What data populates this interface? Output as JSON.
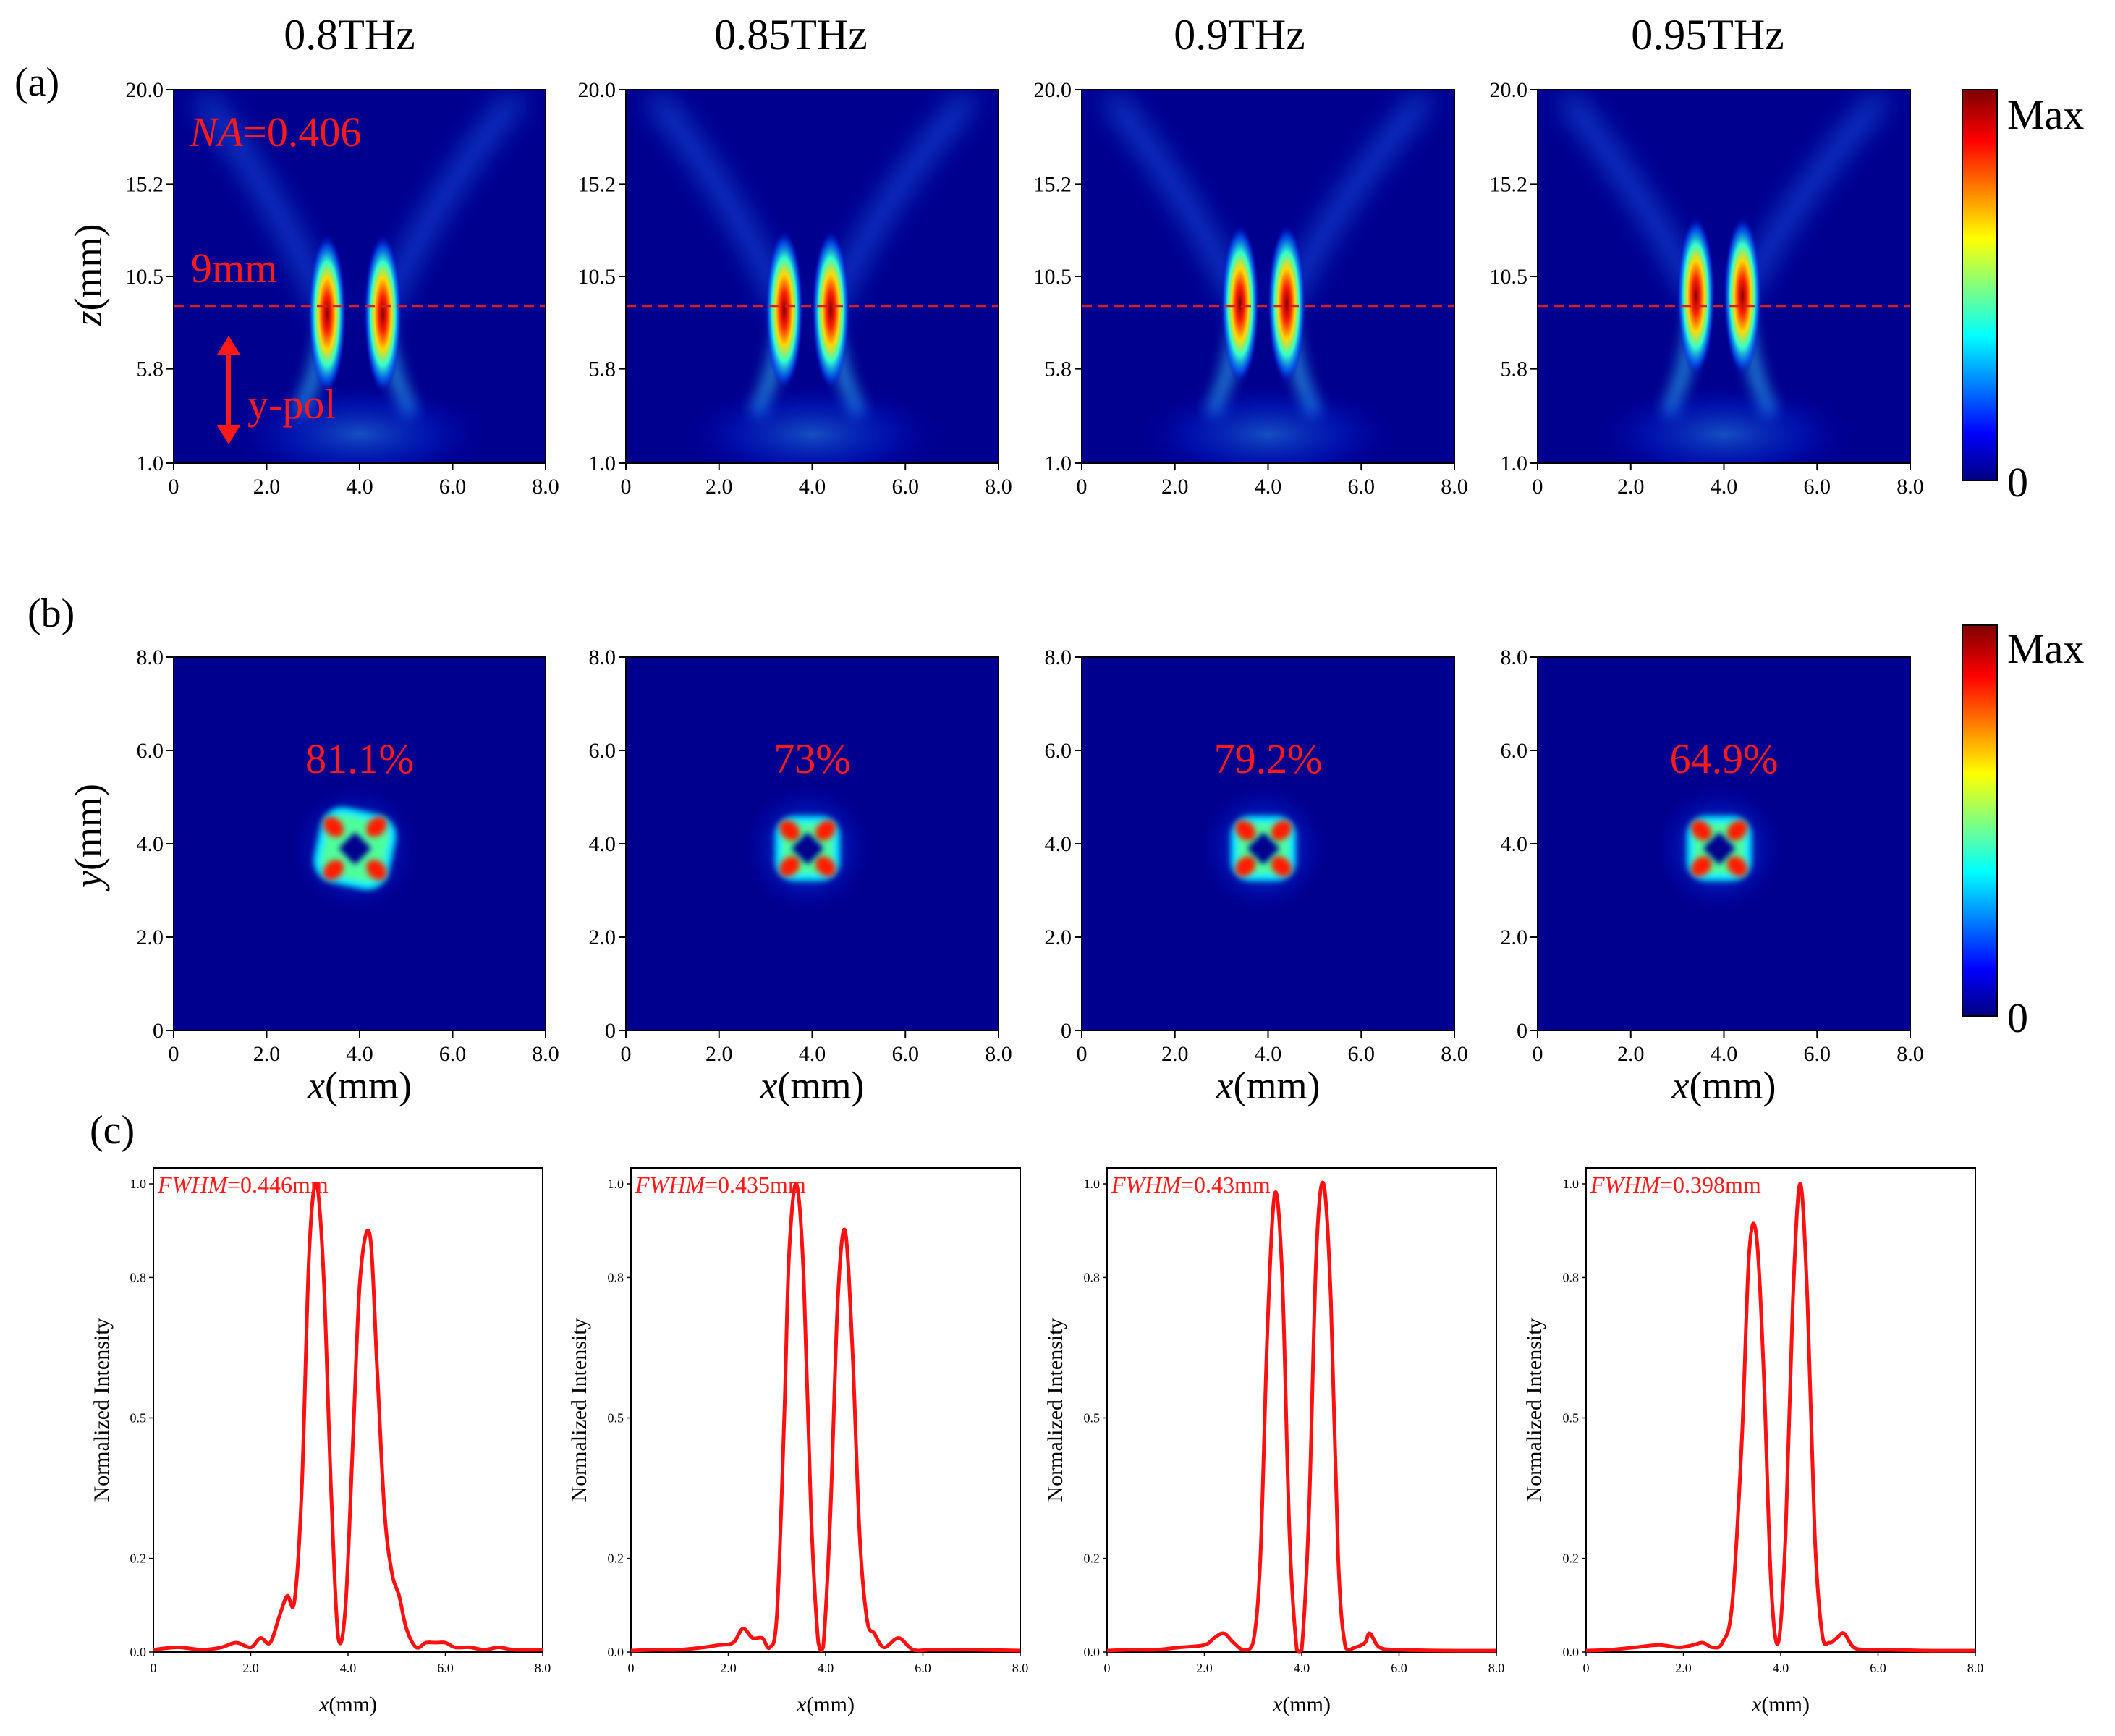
{
  "panel_labels": {
    "a": "(a)",
    "b": "(b)",
    "c": "(c)"
  },
  "frequencies": [
    "0.8THz",
    "0.85THz",
    "0.9THz",
    "0.95THz"
  ],
  "colorbar": {
    "max_label": "Max",
    "min_label": "0",
    "colormap": "jet",
    "colors": [
      "#00007f",
      "#0000ff",
      "#00ffff",
      "#ffff00",
      "#ff0000",
      "#7f0000"
    ]
  },
  "row_a": {
    "ylabel_var": "z",
    "ylabel_unit": "(mm)",
    "annotations": {
      "na_var": "NA",
      "na_value": "=0.406",
      "focal_label": "9mm",
      "polarization": "y-pol"
    },
    "yticks": [
      "20.0",
      "15.2",
      "10.5",
      "5.8",
      "1.0"
    ],
    "xticks": [
      "0",
      "2.0",
      "4.0",
      "6.0",
      "8.0"
    ]
  },
  "row_b": {
    "ylabel_var": "y",
    "ylabel_unit": "(mm)",
    "xlabel_var": "x",
    "xlabel_unit": "(mm)",
    "efficiencies": [
      "81.1%",
      "73%",
      "79.2%",
      "64.9%"
    ],
    "yticks": [
      "8.0",
      "6.0",
      "4.0",
      "2.0",
      "0"
    ],
    "xticks": [
      "0",
      "2.0",
      "4.0",
      "6.0",
      "8.0"
    ]
  },
  "row_c": {
    "ylabel": "Normalized Intensity",
    "xlabel_var": "x",
    "xlabel_unit": "(mm)",
    "fwhm_var": "FWHM",
    "fwhm_values": [
      "=0.446mm",
      "=0.435mm",
      "=0.43mm",
      "=0.398mm"
    ],
    "yticks": [
      "1.0",
      "0.8",
      "0.5",
      "0.2",
      "0.0"
    ],
    "xticks": [
      "0",
      "2.0",
      "4.0",
      "6.0",
      "8.0"
    ]
  },
  "chart_data": [
    {
      "type": "heatmap",
      "panel": "a",
      "xlabel": "",
      "ylabel": "z(mm)",
      "xlim": [
        0,
        8
      ],
      "ylim": [
        1,
        20
      ],
      "focal_plane_z": 9,
      "series": [
        {
          "name": "0.8THz",
          "lobes_x": [
            3.3,
            4.5
          ],
          "peak_z": 8.6
        },
        {
          "name": "0.85THz",
          "lobes_x": [
            3.4,
            4.4
          ],
          "peak_z": 8.8
        },
        {
          "name": "0.9THz",
          "lobes_x": [
            3.4,
            4.4
          ],
          "peak_z": 9.1
        },
        {
          "name": "0.95THz",
          "lobes_x": [
            3.4,
            4.4
          ],
          "peak_z": 9.5
        }
      ]
    },
    {
      "type": "heatmap",
      "panel": "b",
      "xlabel": "x(mm)",
      "ylabel": "y(mm)",
      "xlim": [
        0,
        8
      ],
      "ylim": [
        0,
        8
      ],
      "series": [
        {
          "name": "0.8THz",
          "efficiency": "81.1%",
          "center": [
            3.9,
            3.9
          ]
        },
        {
          "name": "0.85THz",
          "efficiency": "73%",
          "center": [
            3.9,
            3.9
          ]
        },
        {
          "name": "0.9THz",
          "efficiency": "79.2%",
          "center": [
            3.9,
            3.9
          ]
        },
        {
          "name": "0.95THz",
          "efficiency": "64.9%",
          "center": [
            3.9,
            3.9
          ]
        }
      ]
    },
    {
      "type": "line",
      "panel": "c",
      "xlabel": "x(mm)",
      "ylabel": "Normalized Intensity",
      "xlim": [
        0,
        8
      ],
      "ylim": [
        0,
        1.0
      ],
      "series": [
        {
          "name": "0.8THz",
          "fwhm": "0.446mm",
          "x": [
            0,
            0.5,
            1.0,
            1.4,
            1.7,
            2.0,
            2.2,
            2.4,
            2.6,
            2.75,
            2.9,
            3.05,
            3.2,
            3.35,
            3.5,
            3.65,
            3.8,
            3.95,
            4.1,
            4.25,
            4.45,
            4.6,
            4.75,
            4.9,
            5.05,
            5.2,
            5.4,
            5.6,
            5.8,
            6.0,
            6.2,
            6.5,
            6.8,
            7.1,
            7.4,
            8.0
          ],
          "y": [
            0.005,
            0.01,
            0.005,
            0.01,
            0.02,
            0.01,
            0.03,
            0.02,
            0.08,
            0.12,
            0.11,
            0.35,
            0.85,
            1.0,
            0.8,
            0.35,
            0.03,
            0.1,
            0.45,
            0.8,
            0.89,
            0.6,
            0.3,
            0.17,
            0.12,
            0.05,
            0.01,
            0.02,
            0.02,
            0.02,
            0.01,
            0.01,
            0.005,
            0.01,
            0.005,
            0.005
          ]
        },
        {
          "name": "0.85THz",
          "fwhm": "0.435mm",
          "x": [
            0,
            0.5,
            1.0,
            1.5,
            1.8,
            2.1,
            2.3,
            2.5,
            2.7,
            2.85,
            3.0,
            3.15,
            3.25,
            3.4,
            3.55,
            3.7,
            3.85,
            3.95,
            4.1,
            4.25,
            4.4,
            4.55,
            4.7,
            4.85,
            5.0,
            5.2,
            5.5,
            5.8,
            6.2,
            7.0,
            8.0
          ],
          "y": [
            0.003,
            0.005,
            0.005,
            0.01,
            0.015,
            0.02,
            0.05,
            0.03,
            0.03,
            0.01,
            0.08,
            0.5,
            0.85,
            1.0,
            0.8,
            0.3,
            0.02,
            0.01,
            0.3,
            0.75,
            0.9,
            0.65,
            0.25,
            0.07,
            0.04,
            0.01,
            0.03,
            0.005,
            0.005,
            0.005,
            0.003
          ]
        },
        {
          "name": "0.9THz",
          "fwhm": "0.43mm",
          "x": [
            0,
            0.5,
            1.0,
            1.5,
            2.0,
            2.2,
            2.4,
            2.6,
            2.8,
            3.0,
            3.15,
            3.3,
            3.45,
            3.6,
            3.75,
            3.9,
            4.0,
            4.15,
            4.3,
            4.45,
            4.6,
            4.75,
            4.9,
            5.1,
            5.3,
            5.4,
            5.6,
            6.0,
            7.0,
            8.0
          ],
          "y": [
            0.003,
            0.005,
            0.005,
            0.01,
            0.015,
            0.03,
            0.04,
            0.02,
            0.005,
            0.02,
            0.2,
            0.7,
            0.98,
            0.8,
            0.25,
            0.005,
            0.005,
            0.3,
            0.85,
            1.0,
            0.75,
            0.2,
            0.01,
            0.01,
            0.02,
            0.04,
            0.01,
            0.005,
            0.003,
            0.003
          ]
        },
        {
          "name": "0.95THz",
          "fwhm": "0.398mm",
          "x": [
            0,
            0.5,
            1.0,
            1.5,
            1.9,
            2.2,
            2.4,
            2.6,
            2.8,
            3.0,
            3.2,
            3.35,
            3.5,
            3.65,
            3.8,
            3.95,
            4.1,
            4.25,
            4.4,
            4.55,
            4.7,
            4.85,
            5.0,
            5.15,
            5.3,
            5.5,
            5.8,
            6.2,
            7.0,
            8.0
          ],
          "y": [
            0.003,
            0.005,
            0.01,
            0.015,
            0.01,
            0.015,
            0.02,
            0.01,
            0.02,
            0.1,
            0.45,
            0.85,
            0.89,
            0.6,
            0.15,
            0.02,
            0.25,
            0.75,
            1.0,
            0.75,
            0.25,
            0.04,
            0.02,
            0.03,
            0.04,
            0.01,
            0.005,
            0.005,
            0.003,
            0.003
          ]
        }
      ]
    }
  ]
}
